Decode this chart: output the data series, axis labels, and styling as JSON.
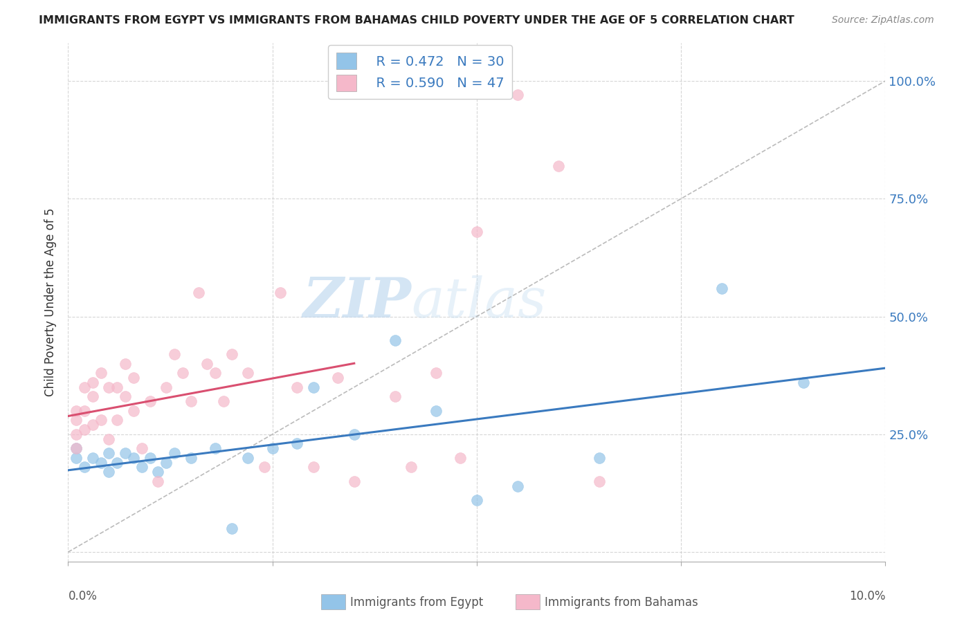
{
  "title": "IMMIGRANTS FROM EGYPT VS IMMIGRANTS FROM BAHAMAS CHILD POVERTY UNDER THE AGE OF 5 CORRELATION CHART",
  "source": "Source: ZipAtlas.com",
  "ylabel": "Child Poverty Under the Age of 5",
  "yticks": [
    0.0,
    0.25,
    0.5,
    0.75,
    1.0
  ],
  "ytick_labels": [
    "",
    "25.0%",
    "50.0%",
    "75.0%",
    "100.0%"
  ],
  "xtick_labels": [
    "0.0%",
    "",
    "",
    "",
    "10.0%"
  ],
  "xlim": [
    0.0,
    0.1
  ],
  "ylim": [
    -0.02,
    1.08
  ],
  "legend_egypt_r": "R = 0.472",
  "legend_egypt_n": "N = 30",
  "legend_bahamas_r": "R = 0.590",
  "legend_bahamas_n": "N = 47",
  "egypt_color": "#93c4e8",
  "bahamas_color": "#f5b8ca",
  "egypt_line_color": "#3a7abf",
  "bahamas_line_color": "#d94f70",
  "diagonal_color": "#bbbbbb",
  "watermark_zip": "ZIP",
  "watermark_atlas": "atlas",
  "bottom_legend_egypt": "Immigrants from Egypt",
  "bottom_legend_bahamas": "Immigrants from Bahamas",
  "egypt_x": [
    0.001,
    0.001,
    0.002,
    0.003,
    0.004,
    0.005,
    0.005,
    0.006,
    0.007,
    0.008,
    0.009,
    0.01,
    0.011,
    0.012,
    0.013,
    0.015,
    0.018,
    0.02,
    0.022,
    0.025,
    0.028,
    0.03,
    0.035,
    0.04,
    0.045,
    0.05,
    0.055,
    0.065,
    0.08,
    0.09
  ],
  "egypt_y": [
    0.2,
    0.22,
    0.18,
    0.2,
    0.19,
    0.21,
    0.17,
    0.19,
    0.21,
    0.2,
    0.18,
    0.2,
    0.17,
    0.19,
    0.21,
    0.2,
    0.22,
    0.05,
    0.2,
    0.22,
    0.23,
    0.35,
    0.25,
    0.45,
    0.3,
    0.11,
    0.14,
    0.2,
    0.56,
    0.36
  ],
  "bahamas_x": [
    0.001,
    0.001,
    0.001,
    0.001,
    0.002,
    0.002,
    0.002,
    0.003,
    0.003,
    0.003,
    0.004,
    0.004,
    0.005,
    0.005,
    0.006,
    0.006,
    0.007,
    0.007,
    0.008,
    0.008,
    0.009,
    0.01,
    0.011,
    0.012,
    0.013,
    0.014,
    0.015,
    0.016,
    0.017,
    0.018,
    0.019,
    0.02,
    0.022,
    0.024,
    0.026,
    0.028,
    0.03,
    0.033,
    0.035,
    0.04,
    0.042,
    0.045,
    0.048,
    0.05,
    0.055,
    0.06,
    0.065
  ],
  "bahamas_y": [
    0.22,
    0.25,
    0.28,
    0.3,
    0.26,
    0.3,
    0.35,
    0.27,
    0.33,
    0.36,
    0.28,
    0.38,
    0.24,
    0.35,
    0.28,
    0.35,
    0.33,
    0.4,
    0.3,
    0.37,
    0.22,
    0.32,
    0.15,
    0.35,
    0.42,
    0.38,
    0.32,
    0.55,
    0.4,
    0.38,
    0.32,
    0.42,
    0.38,
    0.18,
    0.55,
    0.35,
    0.18,
    0.37,
    0.15,
    0.33,
    0.18,
    0.38,
    0.2,
    0.68,
    0.97,
    0.82,
    0.15
  ]
}
